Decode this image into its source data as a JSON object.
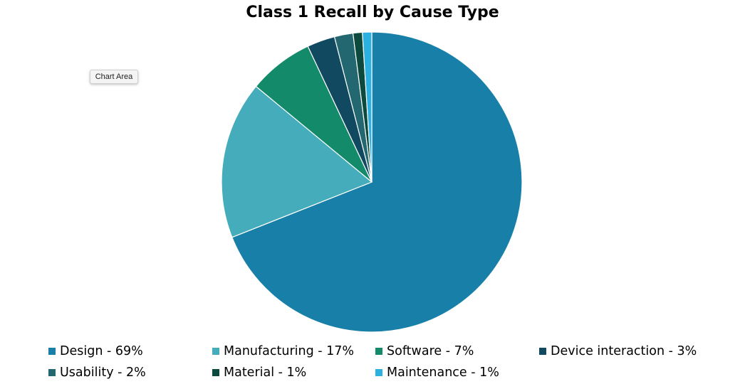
{
  "chart_data": {
    "type": "pie",
    "title": "Class 1 Recall by Cause Type",
    "categories": [
      "Design",
      "Manufacturing",
      "Software",
      "Device interaction",
      "Usability",
      "Material",
      "Maintenance"
    ],
    "values": [
      69,
      17,
      7,
      3,
      2,
      1,
      1
    ],
    "legend_labels": [
      "Design - 69%",
      "Manufacturing - 17%",
      "Software - 7%",
      "Device interaction - 3%",
      "Usability - 2%",
      "Material - 1%",
      "Maintenance - 1%"
    ],
    "colors": [
      "#1880a8",
      "#45acbb",
      "#138a6a",
      "#114a60",
      "#236870",
      "#0b4a3c",
      "#2cb0e0"
    ],
    "legend_position": "bottom"
  },
  "tooltip": {
    "text": "Chart Area"
  }
}
